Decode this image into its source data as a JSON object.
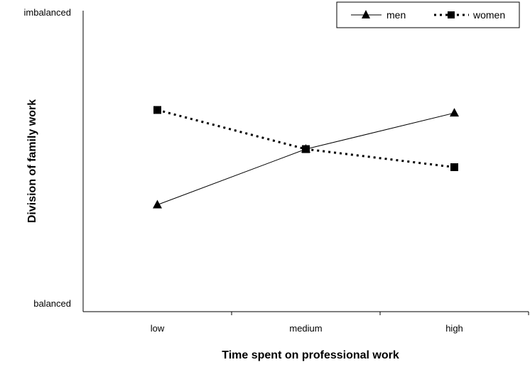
{
  "chart_data": {
    "type": "line",
    "title": "",
    "xlabel": "Time spent on professional work",
    "ylabel": "Division of family work",
    "categories": [
      "low",
      "medium",
      "high"
    ],
    "y_axis_labels": {
      "top": "imbalanced",
      "bottom": "balanced"
    },
    "ylim": [
      0,
      10
    ],
    "grid": false,
    "legend_placement": "top-right",
    "series": [
      {
        "name": "men",
        "values": [
          3.55,
          5.4,
          6.6
        ],
        "marker": "triangle",
        "line_style": "solid",
        "color": "#000000"
      },
      {
        "name": "women",
        "values": [
          6.7,
          5.4,
          4.8
        ],
        "marker": "square",
        "line_style": "dotted",
        "color": "#000000"
      }
    ]
  }
}
